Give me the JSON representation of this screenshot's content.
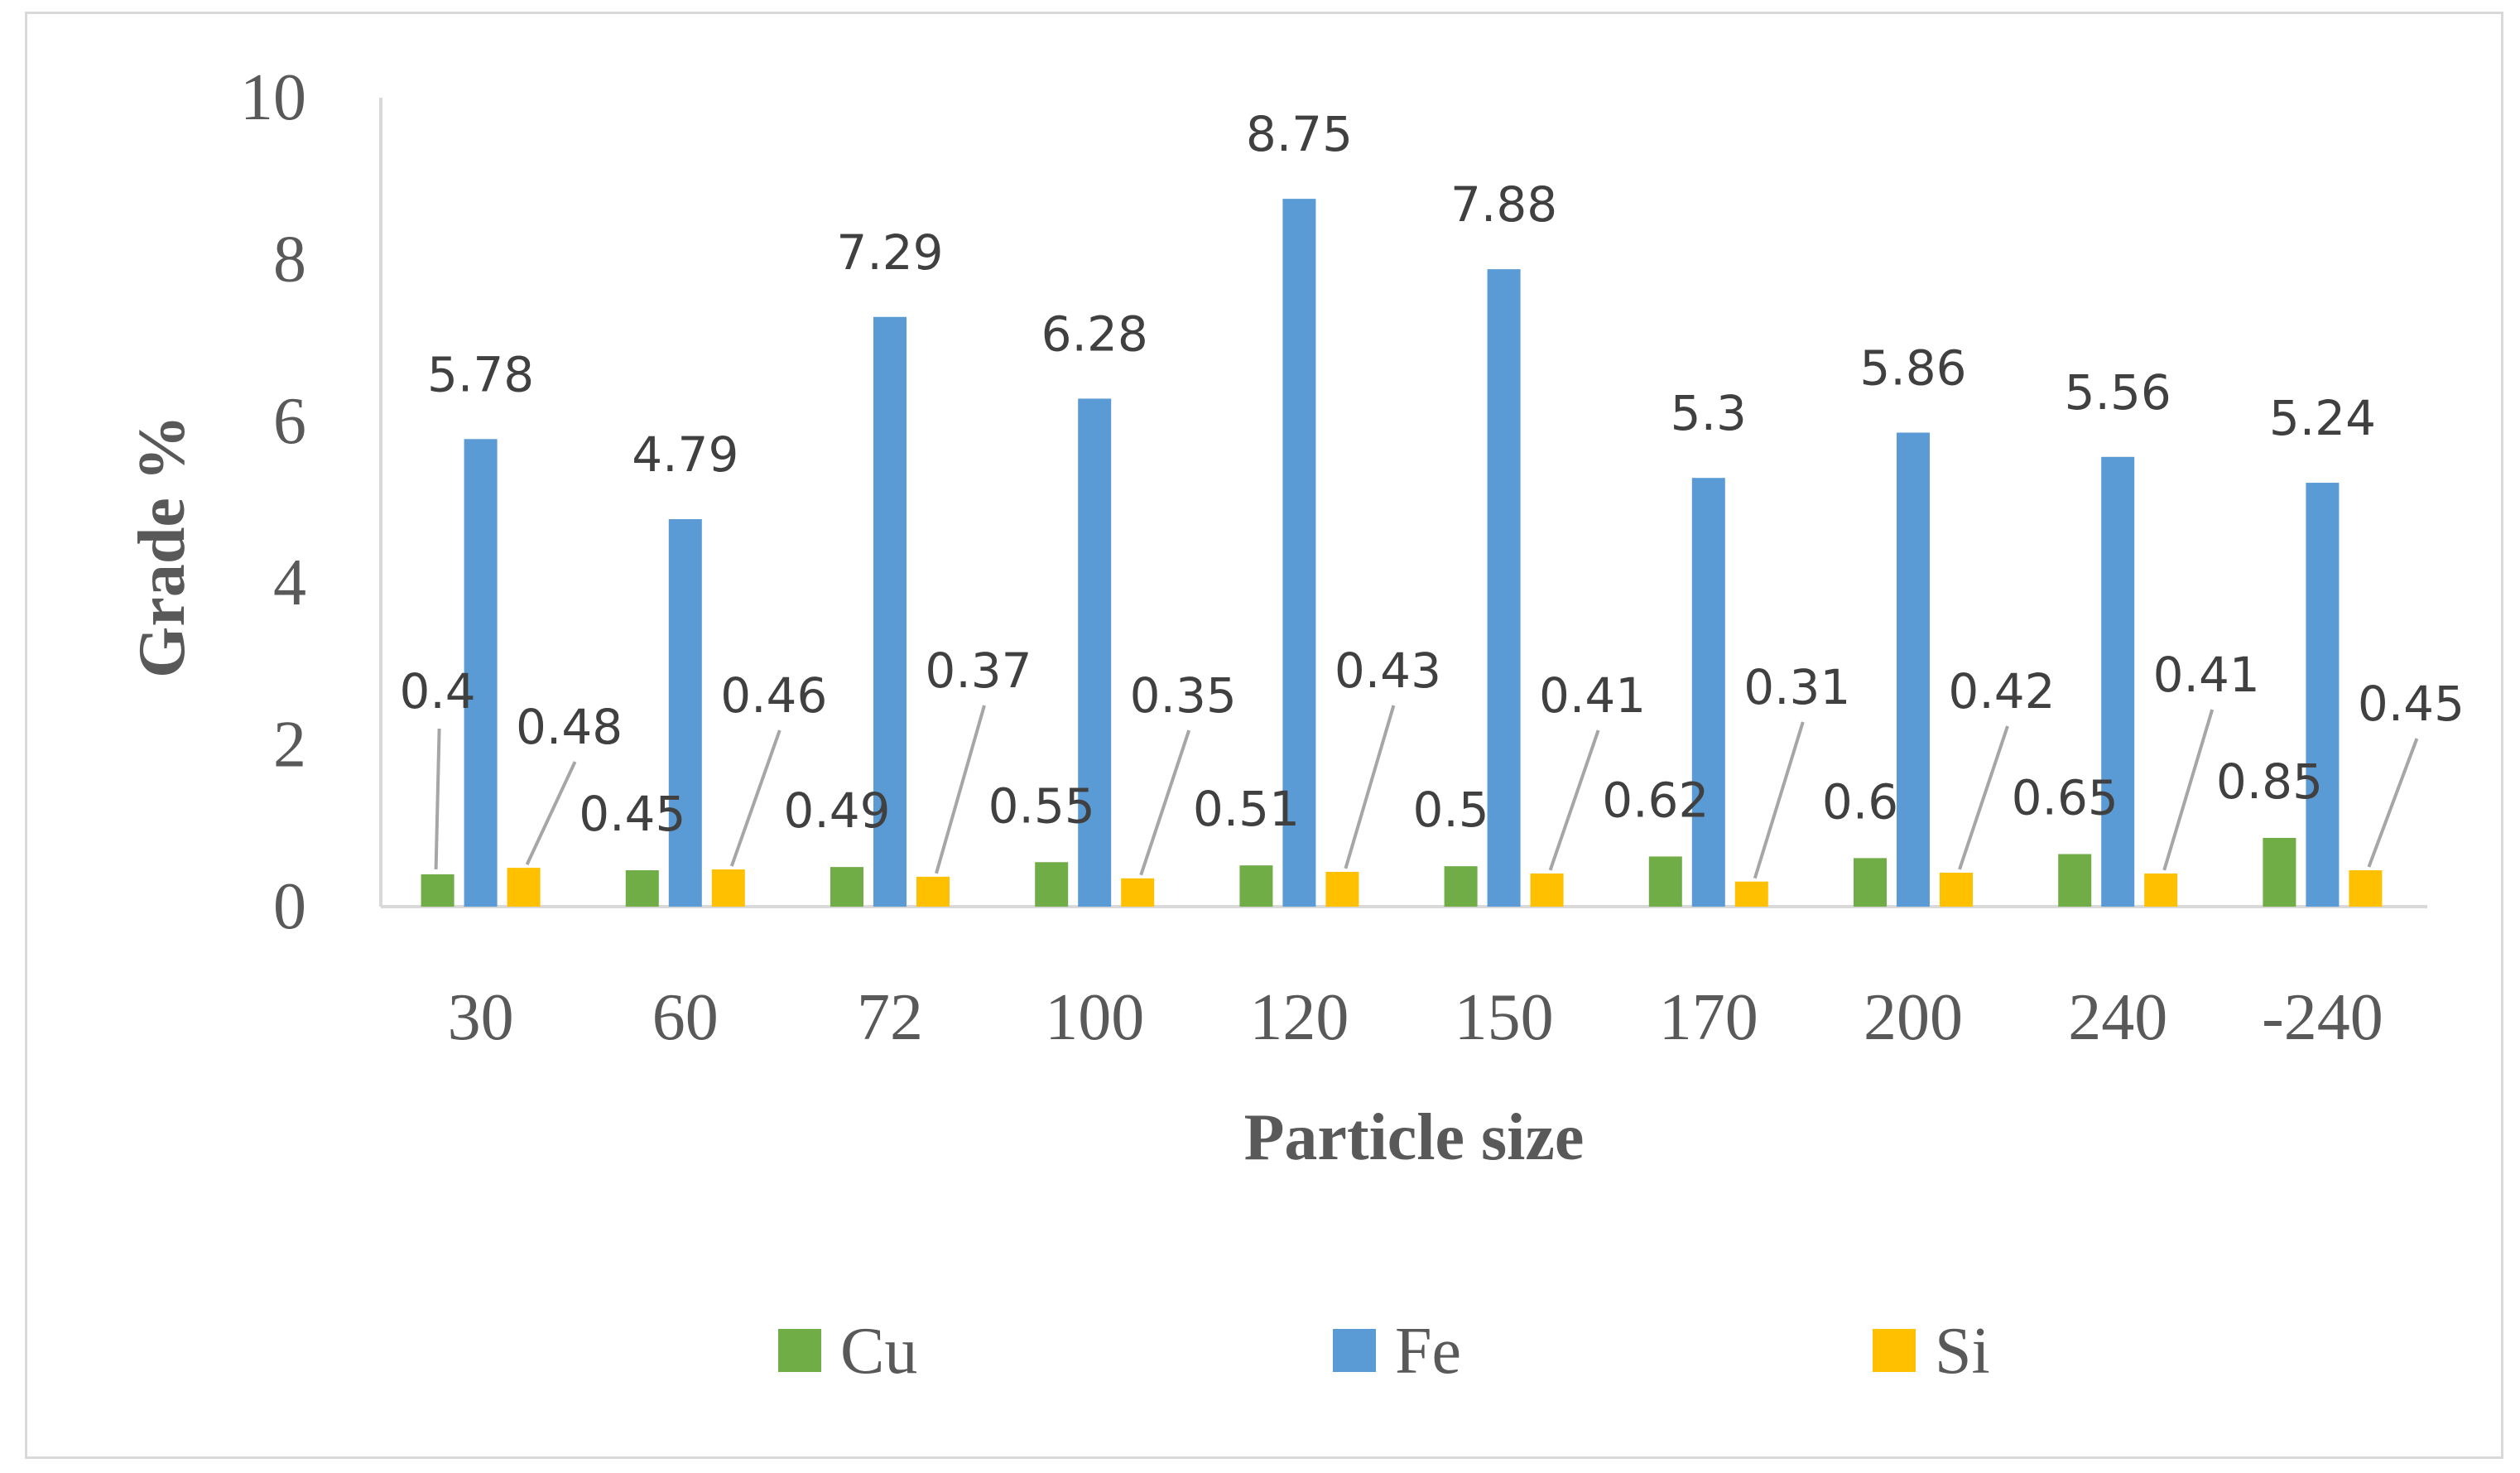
{
  "chart_data": {
    "type": "bar",
    "title": "",
    "xlabel": "Particle size",
    "ylabel": "Grade %",
    "ylim": [
      0,
      10
    ],
    "yticks": [
      0,
      2,
      4,
      6,
      8,
      10
    ],
    "grid": false,
    "legend_position": "bottom",
    "categories": [
      "30",
      "60",
      "72",
      "100",
      "120",
      "150",
      "170",
      "200",
      "240",
      "-240"
    ],
    "series": [
      {
        "name": "Cu",
        "color": "#70ad47",
        "values": [
          0.4,
          0.45,
          0.49,
          0.55,
          0.51,
          0.5,
          0.62,
          0.6,
          0.65,
          0.85
        ],
        "labels": [
          "0.4",
          "0.45",
          "0.49",
          "0.55",
          "0.51",
          "0.5",
          "0.62",
          "0.6",
          "0.65",
          "0.85"
        ]
      },
      {
        "name": "Fe",
        "color": "#5b9bd5",
        "values": [
          5.78,
          4.79,
          7.29,
          6.28,
          8.75,
          7.88,
          5.3,
          5.86,
          5.56,
          5.24
        ],
        "labels": [
          "5.78",
          "4.79",
          "7.29",
          "6.28",
          "8.75",
          "7.88",
          "5.3",
          "5.86",
          "5.56",
          "5.24"
        ]
      },
      {
        "name": "Si",
        "color": "#ffc000",
        "values": [
          0.48,
          0.46,
          0.37,
          0.35,
          0.43,
          0.41,
          0.31,
          0.42,
          0.41,
          0.45
        ],
        "labels": [
          "0.48",
          "0.46",
          "0.37",
          "0.35",
          "0.43",
          "0.41",
          "0.31",
          "0.42",
          "0.41",
          "0.45"
        ]
      }
    ]
  }
}
